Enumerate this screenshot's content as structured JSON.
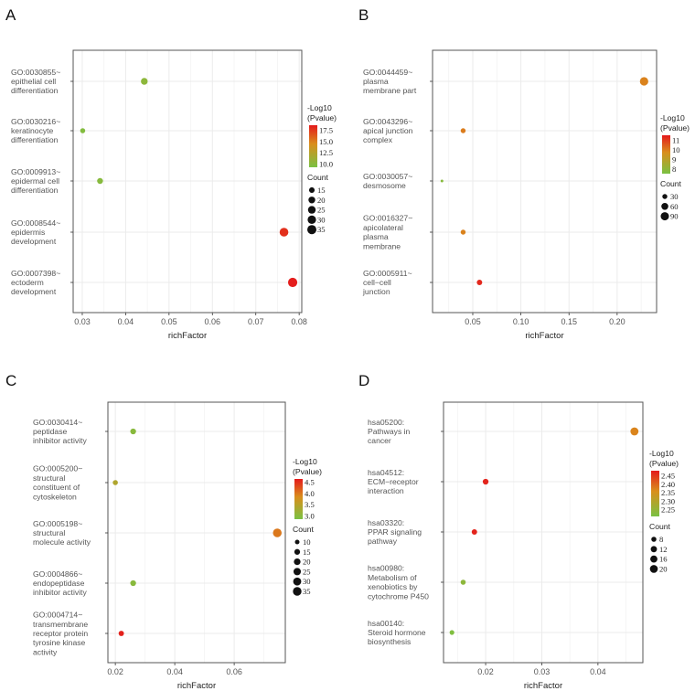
{
  "chart_data": [
    {
      "panel": "A",
      "type": "scatter",
      "xlabel": "richFactor",
      "xlim": [
        0.0279,
        0.0806
      ],
      "xticks": [
        0.03,
        0.04,
        0.05,
        0.06,
        0.07,
        0.08
      ],
      "xtick_labels": [
        "0.03",
        "0.04",
        "0.05",
        "0.06",
        "0.07",
        "0.08"
      ],
      "grid": true,
      "color_legend": {
        "title": [
          "-Log10",
          "(Pvalue)"
        ],
        "ticks": [
          17.5,
          15.0,
          12.5,
          10.0
        ],
        "tick_labels": [
          "17.5",
          "15.0",
          "12.5",
          "10.0"
        ],
        "range": [
          9.3,
          18.6
        ]
      },
      "size_legend": {
        "title": "Count",
        "values": [
          15,
          20,
          25,
          30,
          35
        ],
        "labels": [
          "15",
          "20",
          "25",
          "30",
          "35"
        ]
      },
      "categories": [
        {
          "label": [
            "GO:0030855~",
            "epithelial cell",
            "differentiation"
          ],
          "x": 0.0443,
          "count": 20,
          "pvalue": 10.3
        },
        {
          "label": [
            "GO:0030216~",
            "keratinocyte",
            "differentiation"
          ],
          "x": 0.0301,
          "count": 13,
          "pvalue": 9.8
        },
        {
          "label": [
            "GO:0009913~",
            "epidermal cell",
            "differentiation"
          ],
          "x": 0.0341,
          "count": 16,
          "pvalue": 10.0
        },
        {
          "label": [
            "GO:0008544~",
            "epidermis",
            "development"
          ],
          "x": 0.0765,
          "count": 32,
          "pvalue": 17.8
        },
        {
          "label": [
            "GO:0007398~",
            "ectoderm",
            "development"
          ],
          "x": 0.0785,
          "count": 36,
          "pvalue": 18.5
        }
      ]
    },
    {
      "panel": "B",
      "type": "scatter",
      "xlabel": "richFactor",
      "xlim": [
        0.0082,
        0.241
      ],
      "xticks": [
        0.05,
        0.1,
        0.15,
        0.2
      ],
      "xtick_labels": [
        "0.05",
        "0.10",
        "0.15",
        "0.20"
      ],
      "grid": true,
      "color_legend": {
        "title": [
          "-Log10",
          "(Pvalue)"
        ],
        "ticks": [
          11,
          10,
          9,
          8
        ],
        "tick_labels": [
          "11",
          "10",
          "9",
          "8"
        ],
        "range": [
          7.5,
          11.5
        ]
      },
      "size_legend": {
        "title": "Count",
        "values": [
          30,
          60,
          90
        ],
        "labels": [
          "30",
          "60",
          "90"
        ]
      },
      "categories": [
        {
          "label": [
            "GO:0044459~",
            "plasma",
            "membrane part"
          ],
          "x": 0.228,
          "count": 95,
          "pvalue": 9.9
        },
        {
          "label": [
            "GO:0043296~",
            "apical junction",
            "complex"
          ],
          "x": 0.04,
          "count": 30,
          "pvalue": 10.0
        },
        {
          "label": [
            "GO:0030057~",
            "desmosome"
          ],
          "x": 0.018,
          "count": 12,
          "pvalue": 7.8
        },
        {
          "label": [
            "GO:0016327~",
            "apicolateral",
            "plasma",
            "membrane"
          ],
          "x": 0.04,
          "count": 30,
          "pvalue": 9.9
        },
        {
          "label": [
            "GO:0005911~",
            "cell−cell",
            "junction"
          ],
          "x": 0.057,
          "count": 35,
          "pvalue": 11.3
        }
      ]
    },
    {
      "panel": "C",
      "type": "scatter",
      "xlabel": "richFactor",
      "xlim": [
        0.0175,
        0.0772
      ],
      "xticks": [
        0.02,
        0.04,
        0.06
      ],
      "xtick_labels": [
        "0.02",
        "0.04",
        "0.06"
      ],
      "grid": true,
      "color_legend": {
        "title": [
          "-Log10",
          "(Pvalue)"
        ],
        "ticks": [
          4.5,
          4.0,
          3.5,
          3.0
        ],
        "tick_labels": [
          "4.5",
          "4.0",
          "3.5",
          "3.0"
        ],
        "range": [
          2.85,
          4.65
        ]
      },
      "size_legend": {
        "title": "Count",
        "values": [
          10,
          15,
          20,
          25,
          30,
          35
        ],
        "labels": [
          "10",
          "15",
          "20",
          "25",
          "30",
          "35"
        ]
      },
      "categories": [
        {
          "label": [
            "GO:0030414~",
            "peptidase",
            "inhibitor activity"
          ],
          "x": 0.026,
          "count": 15,
          "pvalue": 3.0
        },
        {
          "label": [
            "GO:0005200~",
            "structural",
            "constituent of",
            "cytoskeleton"
          ],
          "x": 0.02,
          "count": 12,
          "pvalue": 3.4
        },
        {
          "label": [
            "GO:0005198~",
            "structural",
            "molecule activity"
          ],
          "x": 0.0745,
          "count": 36,
          "pvalue": 4.0
        },
        {
          "label": [
            "GO:0004866~",
            "endopeptidase",
            "inhibitor activity"
          ],
          "x": 0.026,
          "count": 15,
          "pvalue": 3.0
        },
        {
          "label": [
            "GO:0004714~",
            "transmembrane",
            "receptor protein",
            "tyrosine kinase",
            "activity"
          ],
          "x": 0.022,
          "count": 13,
          "pvalue": 4.6
        }
      ]
    },
    {
      "panel": "D",
      "type": "scatter",
      "xlabel": "richFactor",
      "xlim": [
        0.0125,
        0.048
      ],
      "xticks": [
        0.02,
        0.03,
        0.04
      ],
      "xtick_labels": [
        "0.02",
        "0.03",
        "0.04"
      ],
      "grid": true,
      "color_legend": {
        "title": [
          "-Log10",
          "(Pvalue)"
        ],
        "ticks": [
          2.45,
          2.4,
          2.35,
          2.3,
          2.25
        ],
        "tick_labels": [
          "2.45",
          "2.40",
          "2.35",
          "2.30",
          "2.25"
        ],
        "range": [
          2.21,
          2.48
        ]
      },
      "size_legend": {
        "title": "Count",
        "values": [
          8,
          12,
          16,
          20
        ],
        "labels": [
          "8",
          "12",
          "16",
          "20"
        ]
      },
      "categories": [
        {
          "label": [
            "hsa05200:",
            "Pathways in",
            "cancer"
          ],
          "x": 0.0465,
          "count": 21,
          "pvalue": 2.37
        },
        {
          "label": [
            "hsa04512:",
            "ECM−receptor",
            "interaction"
          ],
          "x": 0.02,
          "count": 10,
          "pvalue": 2.47
        },
        {
          "label": [
            "hsa03320:",
            "PPAR signaling",
            "pathway"
          ],
          "x": 0.018,
          "count": 9,
          "pvalue": 2.47
        },
        {
          "label": [
            "hsa00980:",
            "Metabolism of",
            "xenobiotics by",
            "cytochrome P450"
          ],
          "x": 0.016,
          "count": 8,
          "pvalue": 2.24
        },
        {
          "label": [
            "hsa00140:",
            "Steroid hormone",
            "biosynthesis"
          ],
          "x": 0.014,
          "count": 7,
          "pvalue": 2.22
        }
      ]
    }
  ],
  "colors": {
    "low": "#7ac143",
    "mid": "#d98f1c",
    "high": "#e41a1c",
    "grid": "#ebebeb",
    "frame": "#555555"
  }
}
